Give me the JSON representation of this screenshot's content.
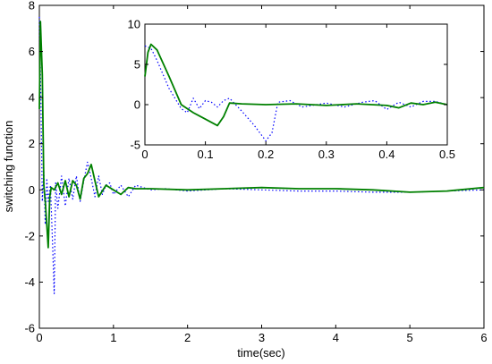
{
  "chart_data": [
    {
      "type": "line",
      "title": "",
      "xlabel": "time(sec)",
      "ylabel": "switching function",
      "xlim": [
        0,
        6
      ],
      "ylim": [
        -6,
        8
      ],
      "xticks": [
        0,
        1,
        2,
        3,
        4,
        5,
        6
      ],
      "yticks": [
        -6,
        -4,
        -2,
        0,
        2,
        4,
        6,
        8
      ],
      "grid": false,
      "series": [
        {
          "style": "dotted",
          "color": "#0000ff",
          "x": [
            0,
            0.02,
            0.04,
            0.06,
            0.08,
            0.1,
            0.12,
            0.15,
            0.18,
            0.2,
            0.22,
            0.25,
            0.3,
            0.35,
            0.4,
            0.45,
            0.5,
            0.55,
            0.6,
            0.65,
            0.7,
            0.75,
            0.8,
            0.85,
            0.9,
            0.95,
            1.0,
            1.1,
            1.2,
            1.3,
            1.4,
            1.5,
            1.7,
            2.0,
            2.5,
            3.0,
            3.5,
            4.0,
            4.5,
            5.0,
            5.5,
            6.0
          ],
          "y": [
            7.5,
            4.0,
            -0.5,
            0.8,
            -1.5,
            0.5,
            -0.5,
            0.2,
            -2.5,
            -4.5,
            0.3,
            -0.8,
            0.6,
            -0.7,
            0.5,
            -0.4,
            0.6,
            -0.5,
            0.4,
            1.2,
            0.5,
            -0.3,
            0.6,
            -0.2,
            0.2,
            0.3,
            -0.2,
            0.2,
            -0.3,
            0.2,
            0.1,
            0.0,
            0.05,
            -0.05,
            0.05,
            0.0,
            -0.05,
            -0.05,
            -0.1,
            -0.1,
            -0.05,
            0.0
          ]
        },
        {
          "style": "solid",
          "color": "#008000",
          "x": [
            0,
            0.015,
            0.04,
            0.06,
            0.08,
            0.1,
            0.12,
            0.14,
            0.16,
            0.2,
            0.25,
            0.3,
            0.35,
            0.4,
            0.45,
            0.5,
            0.55,
            0.6,
            0.65,
            0.7,
            0.75,
            0.8,
            0.9,
            1.0,
            1.1,
            1.2,
            1.3,
            1.5,
            2.0,
            2.5,
            3.0,
            3.5,
            4.0,
            4.5,
            5.0,
            5.5,
            6.0
          ],
          "y": [
            3.5,
            7.3,
            5.0,
            0.2,
            -0.5,
            -1.5,
            -2.5,
            -0.3,
            0.1,
            0.0,
            0.3,
            -0.2,
            0.4,
            -0.3,
            0.4,
            0.2,
            -0.4,
            0.5,
            0.7,
            1.1,
            0.4,
            -0.3,
            0.2,
            0.0,
            -0.2,
            0.1,
            0.05,
            0.05,
            0.0,
            0.05,
            0.1,
            0.05,
            0.05,
            0.0,
            -0.1,
            -0.05,
            0.1
          ]
        }
      ]
    },
    {
      "type": "line",
      "title": "",
      "xlim": [
        0,
        0.5
      ],
      "ylim": [
        -5,
        10
      ],
      "xticks": [
        0,
        0.1,
        0.2,
        0.3,
        0.4,
        0.5
      ],
      "yticks": [
        -5,
        0,
        5,
        10
      ],
      "grid": false,
      "series": [
        {
          "style": "dotted",
          "color": "#0000ff",
          "x": [
            0,
            0.01,
            0.02,
            0.04,
            0.06,
            0.07,
            0.08,
            0.09,
            0.1,
            0.11,
            0.12,
            0.13,
            0.14,
            0.16,
            0.18,
            0.2,
            0.21,
            0.22,
            0.24,
            0.26,
            0.3,
            0.33,
            0.36,
            0.38,
            0.4,
            0.42,
            0.44,
            0.46,
            0.48,
            0.5
          ],
          "y": [
            7.3,
            7.0,
            5.5,
            2.0,
            -0.5,
            -1.0,
            0.8,
            -0.5,
            0.5,
            0.3,
            -0.3,
            0.5,
            0.8,
            -0.8,
            -2.5,
            -4.5,
            -3.5,
            0.3,
            0.5,
            -0.3,
            0.2,
            -0.3,
            0.3,
            0.5,
            -0.6,
            0.3,
            -0.3,
            0.4,
            0.4,
            0.0
          ]
        },
        {
          "style": "solid",
          "color": "#008000",
          "x": [
            0,
            0.005,
            0.01,
            0.02,
            0.04,
            0.06,
            0.08,
            0.1,
            0.12,
            0.13,
            0.14,
            0.16,
            0.2,
            0.25,
            0.3,
            0.35,
            0.4,
            0.42,
            0.44,
            0.46,
            0.48,
            0.5
          ],
          "y": [
            3.5,
            6.5,
            7.5,
            6.8,
            3.5,
            0.0,
            -1.0,
            -1.8,
            -2.6,
            -1.5,
            0.2,
            0.1,
            0.0,
            0.1,
            -0.1,
            0.1,
            -0.1,
            -0.4,
            0.2,
            0.0,
            0.3,
            0.0
          ]
        }
      ]
    }
  ]
}
